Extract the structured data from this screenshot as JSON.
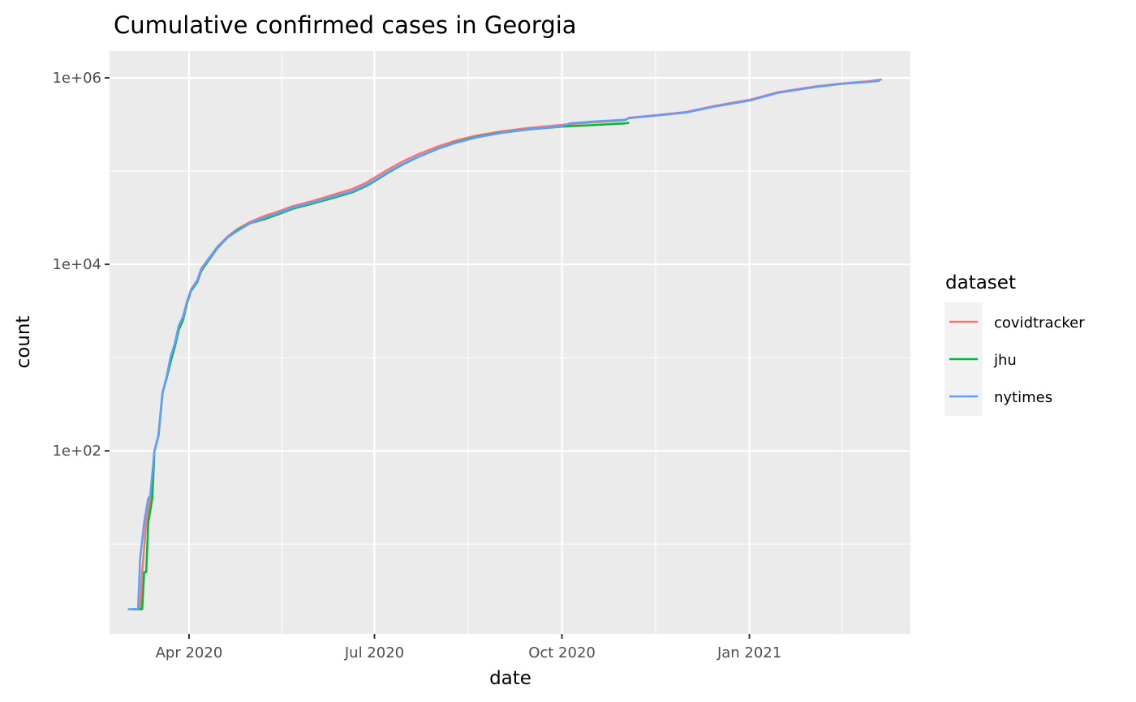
{
  "chart_data": {
    "type": "line",
    "title": "Cumulative confirmed cases in Georgia",
    "xlabel": "date",
    "ylabel": "count",
    "y_scale": "log10",
    "ylim": [
      1.5,
      1000000
    ],
    "xlim": [
      "2020-02-22",
      "2021-03-21"
    ],
    "grid": true,
    "legend_title": "dataset",
    "legend_position": "right",
    "x_ticks": [
      {
        "date": "2020-04-01",
        "label": "Apr 2020"
      },
      {
        "date": "2020-07-01",
        "label": "Jul 2020"
      },
      {
        "date": "2020-10-01",
        "label": "Oct 2020"
      },
      {
        "date": "2021-01-01",
        "label": "Jan 2021"
      }
    ],
    "y_ticks": [
      {
        "value": 100,
        "label": "1e+02"
      },
      {
        "value": 10000,
        "label": "1e+04"
      },
      {
        "value": 1000000,
        "label": "1e+06"
      }
    ],
    "series": [
      {
        "name": "covidtracker",
        "color": "#F8766D",
        "points": [
          [
            "2020-03-04",
            2
          ],
          [
            "2020-03-08",
            2
          ],
          [
            "2020-03-09",
            5
          ],
          [
            "2020-03-11",
            17
          ],
          [
            "2020-03-13",
            31
          ],
          [
            "2020-03-15",
            99
          ],
          [
            "2020-03-17",
            146
          ],
          [
            "2020-03-19",
            420
          ],
          [
            "2020-03-21",
            600
          ],
          [
            "2020-03-23",
            1000
          ],
          [
            "2020-03-25",
            1400
          ],
          [
            "2020-03-27",
            2200
          ],
          [
            "2020-03-29",
            2700
          ],
          [
            "2020-03-31",
            4000
          ],
          [
            "2020-04-02",
            5400
          ],
          [
            "2020-04-05",
            6700
          ],
          [
            "2020-04-07",
            9000
          ],
          [
            "2020-04-10",
            11000
          ],
          [
            "2020-04-15",
            15500
          ],
          [
            "2020-04-20",
            20000
          ],
          [
            "2020-04-25",
            24000
          ],
          [
            "2020-05-01",
            28500
          ],
          [
            "2020-05-08",
            33000
          ],
          [
            "2020-05-15",
            37000
          ],
          [
            "2020-05-22",
            42000
          ],
          [
            "2020-06-01",
            48000
          ],
          [
            "2020-06-10",
            55000
          ],
          [
            "2020-06-20",
            64000
          ],
          [
            "2020-06-27",
            75000
          ],
          [
            "2020-07-01",
            85000
          ],
          [
            "2020-07-08",
            105000
          ],
          [
            "2020-07-15",
            127000
          ],
          [
            "2020-07-22",
            150000
          ],
          [
            "2020-08-01",
            183000
          ],
          [
            "2020-08-10",
            213000
          ],
          [
            "2020-08-20",
            240000
          ],
          [
            "2020-09-01",
            266000
          ],
          [
            "2020-09-15",
            290000
          ],
          [
            "2020-10-01",
            313000
          ],
          [
            "2020-10-15",
            331000
          ],
          [
            "2020-11-01",
            351000
          ],
          [
            "2020-11-03",
            373000
          ],
          [
            "2020-11-15",
            395000
          ],
          [
            "2020-12-01",
            430000
          ],
          [
            "2020-12-15",
            500000
          ],
          [
            "2021-01-01",
            580000
          ],
          [
            "2021-01-15",
            700000
          ],
          [
            "2021-02-01",
            800000
          ],
          [
            "2021-02-15",
            870000
          ],
          [
            "2021-03-01",
            920000
          ],
          [
            "2021-03-07",
            960000
          ]
        ]
      },
      {
        "name": "jhu",
        "color": "#00BA38",
        "points": [
          [
            "2020-03-04",
            2
          ],
          [
            "2020-03-09",
            2
          ],
          [
            "2020-03-10",
            5
          ],
          [
            "2020-03-11",
            5
          ],
          [
            "2020-03-12",
            17
          ],
          [
            "2020-03-14",
            31
          ],
          [
            "2020-03-15",
            99
          ],
          [
            "2020-03-17",
            146
          ],
          [
            "2020-03-19",
            420
          ],
          [
            "2020-03-21",
            600
          ],
          [
            "2020-03-23",
            900
          ],
          [
            "2020-03-25",
            1300
          ],
          [
            "2020-03-27",
            2000
          ],
          [
            "2020-03-29",
            2500
          ],
          [
            "2020-03-31",
            3800
          ],
          [
            "2020-04-02",
            5200
          ],
          [
            "2020-04-05",
            6400
          ],
          [
            "2020-04-07",
            8500
          ],
          [
            "2020-04-10",
            10500
          ],
          [
            "2020-04-15",
            15000
          ],
          [
            "2020-04-20",
            19500
          ],
          [
            "2020-04-25",
            23500
          ],
          [
            "2020-05-01",
            27500
          ],
          [
            "2020-05-08",
            30500
          ],
          [
            "2020-05-15",
            34500
          ],
          [
            "2020-05-22",
            39500
          ],
          [
            "2020-06-01",
            45000
          ],
          [
            "2020-06-10",
            51000
          ],
          [
            "2020-06-20",
            59000
          ],
          [
            "2020-06-27",
            69000
          ],
          [
            "2020-07-01",
            78000
          ],
          [
            "2020-07-08",
            97000
          ],
          [
            "2020-07-15",
            118000
          ],
          [
            "2020-07-22",
            140000
          ],
          [
            "2020-08-01",
            173000
          ],
          [
            "2020-08-10",
            203000
          ],
          [
            "2020-08-20",
            232000
          ],
          [
            "2020-09-01",
            258000
          ],
          [
            "2020-09-15",
            280000
          ],
          [
            "2020-10-01",
            300000
          ],
          [
            "2020-10-15",
            310000
          ],
          [
            "2020-11-01",
            325000
          ],
          [
            "2020-11-03",
            330000
          ]
        ]
      },
      {
        "name": "nytimes",
        "color": "#619CFF",
        "points": [
          [
            "2020-03-02",
            2
          ],
          [
            "2020-03-07",
            2
          ],
          [
            "2020-03-08",
            7
          ],
          [
            "2020-03-10",
            17
          ],
          [
            "2020-03-12",
            31
          ],
          [
            "2020-03-13",
            33
          ],
          [
            "2020-03-15",
            99
          ],
          [
            "2020-03-17",
            146
          ],
          [
            "2020-03-19",
            420
          ],
          [
            "2020-03-21",
            620
          ],
          [
            "2020-03-23",
            1020
          ],
          [
            "2020-03-25",
            1400
          ],
          [
            "2020-03-27",
            2200
          ],
          [
            "2020-03-29",
            2700
          ],
          [
            "2020-03-31",
            3900
          ],
          [
            "2020-04-02",
            5300
          ],
          [
            "2020-04-05",
            6600
          ],
          [
            "2020-04-07",
            8800
          ],
          [
            "2020-04-10",
            10800
          ],
          [
            "2020-04-15",
            15200
          ],
          [
            "2020-04-20",
            19500
          ],
          [
            "2020-04-25",
            23000
          ],
          [
            "2020-05-01",
            27500
          ],
          [
            "2020-05-08",
            31500
          ],
          [
            "2020-05-15",
            35500
          ],
          [
            "2020-05-22",
            40500
          ],
          [
            "2020-06-01",
            46000
          ],
          [
            "2020-06-10",
            52500
          ],
          [
            "2020-06-20",
            60500
          ],
          [
            "2020-06-27",
            70500
          ],
          [
            "2020-07-01",
            79500
          ],
          [
            "2020-07-08",
            98500
          ],
          [
            "2020-07-15",
            119000
          ],
          [
            "2020-07-22",
            141000
          ],
          [
            "2020-08-01",
            173000
          ],
          [
            "2020-08-10",
            201000
          ],
          [
            "2020-08-20",
            229000
          ],
          [
            "2020-09-01",
            256000
          ],
          [
            "2020-09-15",
            280000
          ],
          [
            "2020-10-01",
            302000
          ],
          [
            "2020-10-05",
            325000
          ],
          [
            "2020-10-15",
            338000
          ],
          [
            "2020-11-01",
            355000
          ],
          [
            "2020-11-03",
            370000
          ],
          [
            "2020-11-15",
            392000
          ],
          [
            "2020-12-01",
            425000
          ],
          [
            "2020-12-15",
            492000
          ],
          [
            "2021-01-01",
            570000
          ],
          [
            "2021-01-15",
            690000
          ],
          [
            "2021-02-01",
            790000
          ],
          [
            "2021-02-15",
            860000
          ],
          [
            "2021-03-01",
            905000
          ],
          [
            "2021-03-06",
            930000
          ]
        ]
      }
    ]
  }
}
